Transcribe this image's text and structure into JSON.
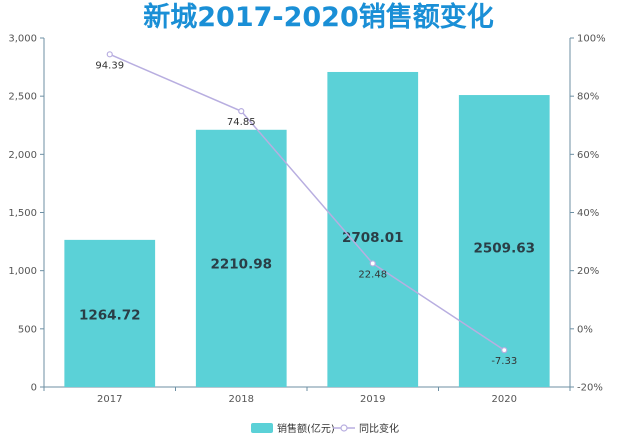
{
  "chart_data": {
    "type": "bar",
    "title": "新城2017-2020销售额变化",
    "categories": [
      "2017",
      "2018",
      "2019",
      "2020"
    ],
    "series": [
      {
        "name": "销售额(亿元)",
        "type": "bar",
        "axis": "left",
        "values": [
          1264.72,
          2210.98,
          2708.01,
          2509.63
        ],
        "labels": [
          "1264.72",
          "2210.98",
          "2708.01",
          "2509.63"
        ]
      },
      {
        "name": "同比变化",
        "type": "line",
        "axis": "right",
        "values": [
          94.39,
          74.85,
          22.48,
          -7.33
        ],
        "labels": [
          "94.39",
          "74.85",
          "22.48",
          "-7.33"
        ]
      }
    ],
    "y_left": {
      "ticks": [
        0,
        500,
        1000,
        1500,
        2000,
        2500,
        3000
      ],
      "tick_labels": [
        "0",
        "500",
        "1,000",
        "1,500",
        "2,000",
        "2,500",
        "3,000"
      ],
      "ylim": [
        0,
        3000
      ]
    },
    "y_right": {
      "ticks": [
        -20,
        0,
        20,
        40,
        60,
        80,
        100
      ],
      "tick_labels": [
        "-20%",
        "0%",
        "20%",
        "40%",
        "60%",
        "80%",
        "100%"
      ],
      "ylim": [
        -20,
        100
      ]
    },
    "grid": false,
    "legend_position": "bottom-center",
    "colors": {
      "bar": "#5bd1d7",
      "line": "#b8aee0",
      "title": "#1a8fd6",
      "axis": "#6d8fa3"
    }
  }
}
